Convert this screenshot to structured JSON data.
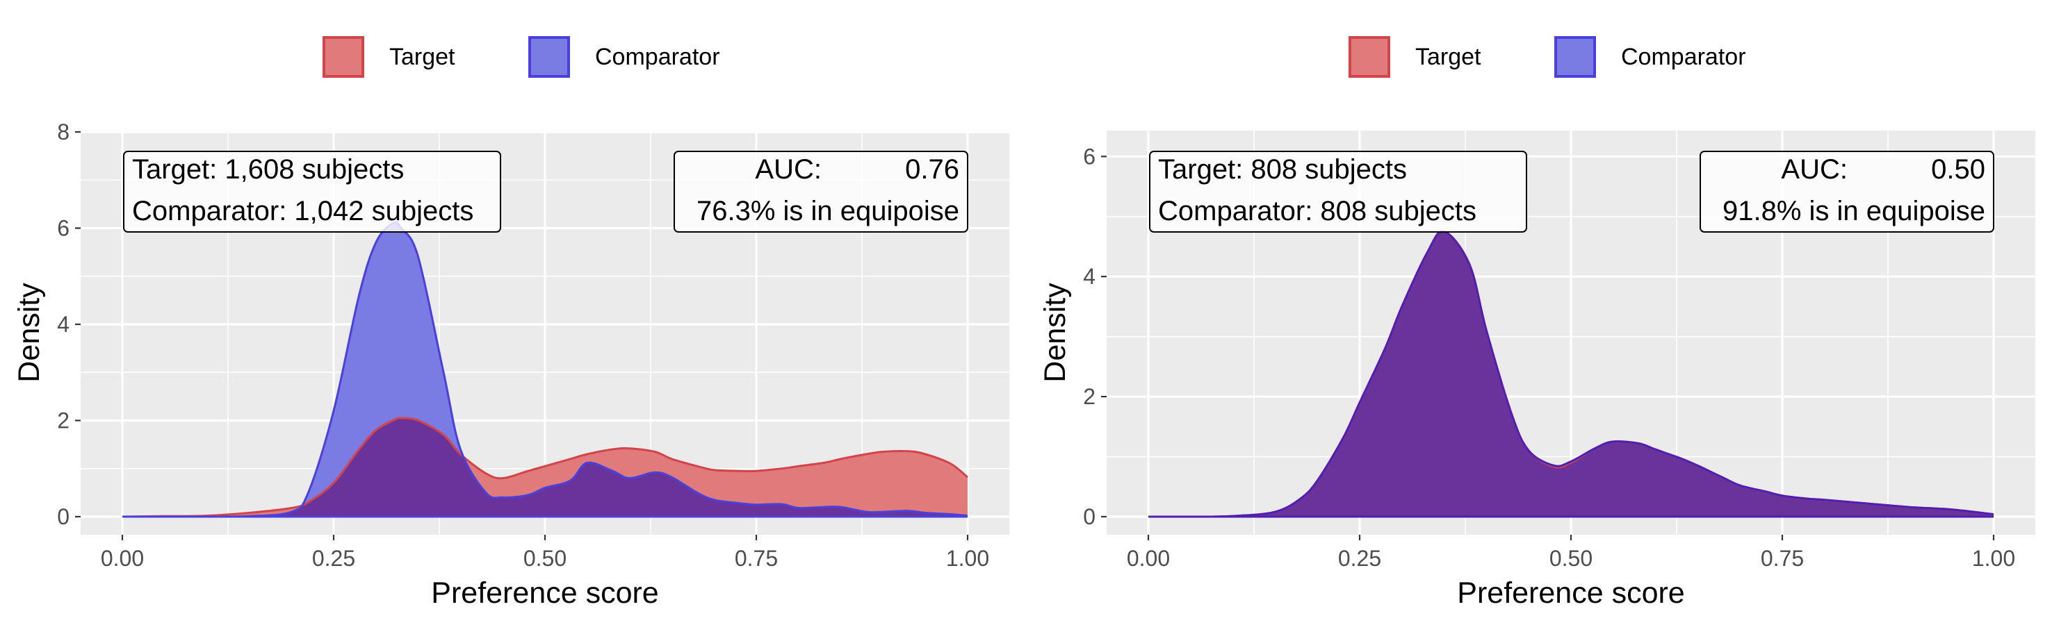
{
  "legend": {
    "target_label": "Target",
    "comparator_label": "Comparator",
    "target_fill": "#E17B7B",
    "target_stroke": "#D3434A",
    "comparator_fill": "#7B7BE4",
    "comparator_stroke": "#4A40DC",
    "overlap_fill": "#6A339C",
    "overlap_stroke": "#4F1FB3"
  },
  "chart_data": [
    {
      "type": "area",
      "xlabel": "Preference score",
      "ylabel": "Density",
      "xlim": [
        0,
        1
      ],
      "ylim": [
        0,
        8
      ],
      "x_ticks": [
        "0.00",
        "0.25",
        "0.50",
        "0.75",
        "1.00"
      ],
      "y_ticks": [
        "0",
        "2",
        "4",
        "6",
        "8"
      ],
      "grid": true,
      "legend_position": "top",
      "annotation_left": [
        "Target: 1,608 subjects",
        "Comparator: 1,042 subjects"
      ],
      "auc_label": "AUC:",
      "auc_value": "0.76",
      "equipoise_text": "76.3% is in equipoise",
      "x": [
        0,
        0.05,
        0.1,
        0.15,
        0.2,
        0.22,
        0.25,
        0.28,
        0.3,
        0.32,
        0.33,
        0.35,
        0.38,
        0.4,
        0.43,
        0.45,
        0.48,
        0.5,
        0.53,
        0.55,
        0.58,
        0.6,
        0.63,
        0.65,
        0.68,
        0.7,
        0.73,
        0.75,
        0.78,
        0.8,
        0.83,
        0.85,
        0.88,
        0.9,
        0.93,
        0.95,
        0.98,
        1.0
      ],
      "series": [
        {
          "name": "Target",
          "values": [
            0,
            0.01,
            0.02,
            0.08,
            0.18,
            0.3,
            0.7,
            1.4,
            1.8,
            2.0,
            2.05,
            2.0,
            1.7,
            1.3,
            0.9,
            0.8,
            0.95,
            1.05,
            1.2,
            1.3,
            1.4,
            1.42,
            1.35,
            1.2,
            1.05,
            0.97,
            0.95,
            0.95,
            1.0,
            1.05,
            1.12,
            1.2,
            1.3,
            1.35,
            1.36,
            1.3,
            1.1,
            0.82
          ]
        },
        {
          "name": "Comparator",
          "values": [
            0,
            0.0,
            0.0,
            0.01,
            0.1,
            0.5,
            2.2,
            4.6,
            5.7,
            6.1,
            6.0,
            5.4,
            3.0,
            1.4,
            0.5,
            0.4,
            0.45,
            0.6,
            0.75,
            1.12,
            0.95,
            0.8,
            0.92,
            0.82,
            0.5,
            0.35,
            0.28,
            0.25,
            0.26,
            0.18,
            0.2,
            0.2,
            0.1,
            0.1,
            0.12,
            0.08,
            0.05,
            0.02
          ]
        }
      ]
    },
    {
      "type": "area",
      "xlabel": "Preference score",
      "ylabel": "Density",
      "xlim": [
        0,
        1
      ],
      "ylim": [
        0,
        6.2
      ],
      "x_ticks": [
        "0.00",
        "0.25",
        "0.50",
        "0.75",
        "1.00"
      ],
      "y_ticks": [
        "0",
        "2",
        "4",
        "6"
      ],
      "grid": true,
      "legend_position": "top",
      "annotation_left": [
        "Target: 808 subjects",
        "Comparator: 808 subjects"
      ],
      "auc_label": "AUC:",
      "auc_value": "0.50",
      "equipoise_text": "91.8% is in equipoise",
      "x": [
        0,
        0.05,
        0.1,
        0.15,
        0.18,
        0.2,
        0.23,
        0.25,
        0.28,
        0.3,
        0.33,
        0.35,
        0.38,
        0.4,
        0.43,
        0.45,
        0.48,
        0.5,
        0.53,
        0.55,
        0.58,
        0.6,
        0.63,
        0.65,
        0.68,
        0.7,
        0.73,
        0.75,
        0.78,
        0.8,
        0.85,
        0.9,
        0.95,
        1.0
      ],
      "series": [
        {
          "name": "Target",
          "values": [
            0,
            0.0,
            0.01,
            0.08,
            0.3,
            0.6,
            1.3,
            1.9,
            2.8,
            3.5,
            4.4,
            4.75,
            4.2,
            3.1,
            1.7,
            1.1,
            0.83,
            0.9,
            1.15,
            1.25,
            1.22,
            1.12,
            0.97,
            0.85,
            0.65,
            0.52,
            0.42,
            0.35,
            0.3,
            0.28,
            0.22,
            0.16,
            0.12,
            0.04
          ]
        },
        {
          "name": "Comparator",
          "values": [
            0,
            0.0,
            0.01,
            0.08,
            0.3,
            0.6,
            1.3,
            1.9,
            2.8,
            3.5,
            4.4,
            4.75,
            4.2,
            3.1,
            1.7,
            1.1,
            0.85,
            0.92,
            1.15,
            1.25,
            1.22,
            1.12,
            0.97,
            0.85,
            0.65,
            0.52,
            0.42,
            0.35,
            0.3,
            0.28,
            0.22,
            0.16,
            0.12,
            0.04
          ]
        }
      ]
    }
  ]
}
